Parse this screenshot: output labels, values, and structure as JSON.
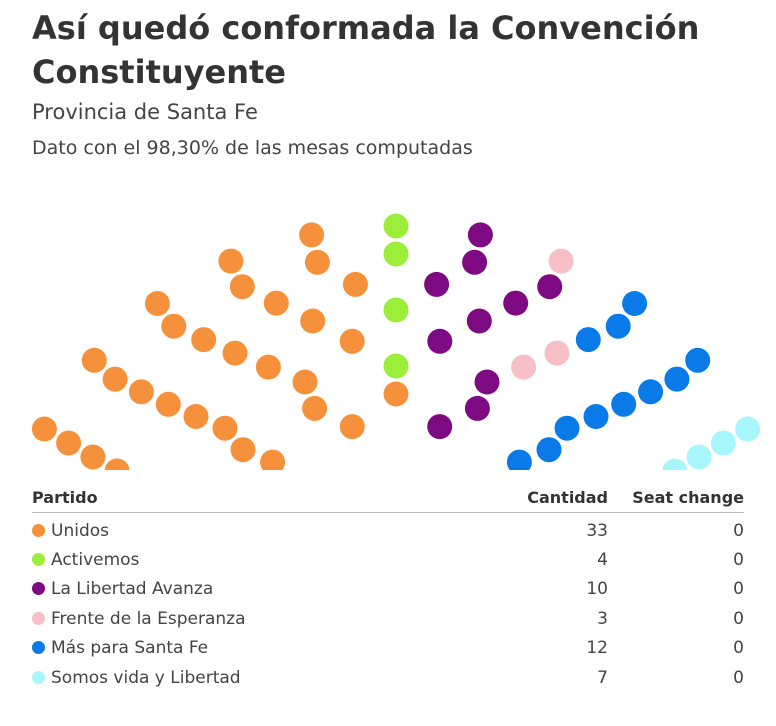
{
  "header": {
    "title": "Así quedó conformada la Convención Constituyente",
    "subtitle": "Provincia de Santa Fe",
    "note": "Dato con el 98,30% de las mesas computadas"
  },
  "table": {
    "headers": {
      "party": "Partido",
      "count": "Cantidad",
      "change": "Seat change"
    }
  },
  "chart_data": {
    "type": "parliament",
    "title": "Así quedó conformada la Convención Constituyente",
    "subtitle": "Provincia de Santa Fe",
    "total_seats": 69,
    "rows": 8,
    "arc_degrees": 120,
    "parties": [
      {
        "name": "Unidos",
        "seats": 33,
        "seat_change": 0,
        "color": "#f5913a"
      },
      {
        "name": "Activemos",
        "seats": 4,
        "seat_change": 0,
        "color": "#9bef3b"
      },
      {
        "name": "La Libertad Avanza",
        "seats": 10,
        "seat_change": 0,
        "color": "#7e0a83"
      },
      {
        "name": "Frente de la Esperanza",
        "seats": 3,
        "seat_change": 0,
        "color": "#f7bfc5"
      },
      {
        "name": "Más para Santa Fe",
        "seats": 12,
        "seat_change": 0,
        "color": "#0a7ae8"
      },
      {
        "name": "Somos vida y Libertad",
        "seats": 7,
        "seat_change": 0,
        "color": "#a6f6fb"
      }
    ]
  }
}
